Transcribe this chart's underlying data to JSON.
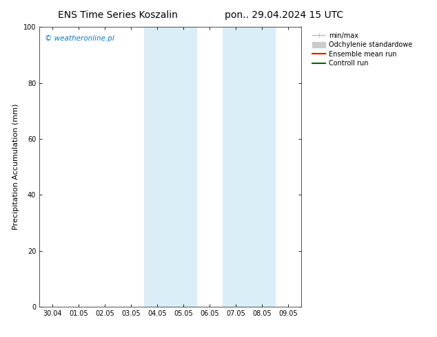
{
  "title_left": "ENS Time Series Koszalin",
  "title_right": "pon.. 29.04.2024 15 UTC",
  "ylabel": "Precipitation Accumulation (mm)",
  "ylim": [
    0,
    100
  ],
  "yticks": [
    0,
    20,
    40,
    60,
    80,
    100
  ],
  "xtick_labels": [
    "30.04",
    "01.05",
    "02.05",
    "03.05",
    "04.05",
    "05.05",
    "06.05",
    "07.05",
    "08.05",
    "09.05"
  ],
  "copyright_text": "© weatheronline.pl",
  "copyright_color": "#007acc",
  "background_color": "#ffffff",
  "plot_bg_color": "#ffffff",
  "shaded_regions": [
    {
      "xmin": 3.5,
      "xmax": 5.5,
      "color": "#daeef8"
    },
    {
      "xmin": 6.5,
      "xmax": 8.5,
      "color": "#daeef8"
    }
  ],
  "legend_items": [
    {
      "label": "min/max",
      "color": "#bbbbbb",
      "lw": 1.0
    },
    {
      "label": "Odchylenie standardowe",
      "color": "#cccccc",
      "lw": 5
    },
    {
      "label": "Ensemble mean run",
      "color": "#ff0000",
      "lw": 1.5
    },
    {
      "label": "Controll run",
      "color": "#008000",
      "lw": 1.5
    }
  ],
  "x_num_ticks": 10,
  "tick_fontsize": 7,
  "label_fontsize": 8,
  "title_fontsize": 10,
  "legend_fontsize": 7
}
